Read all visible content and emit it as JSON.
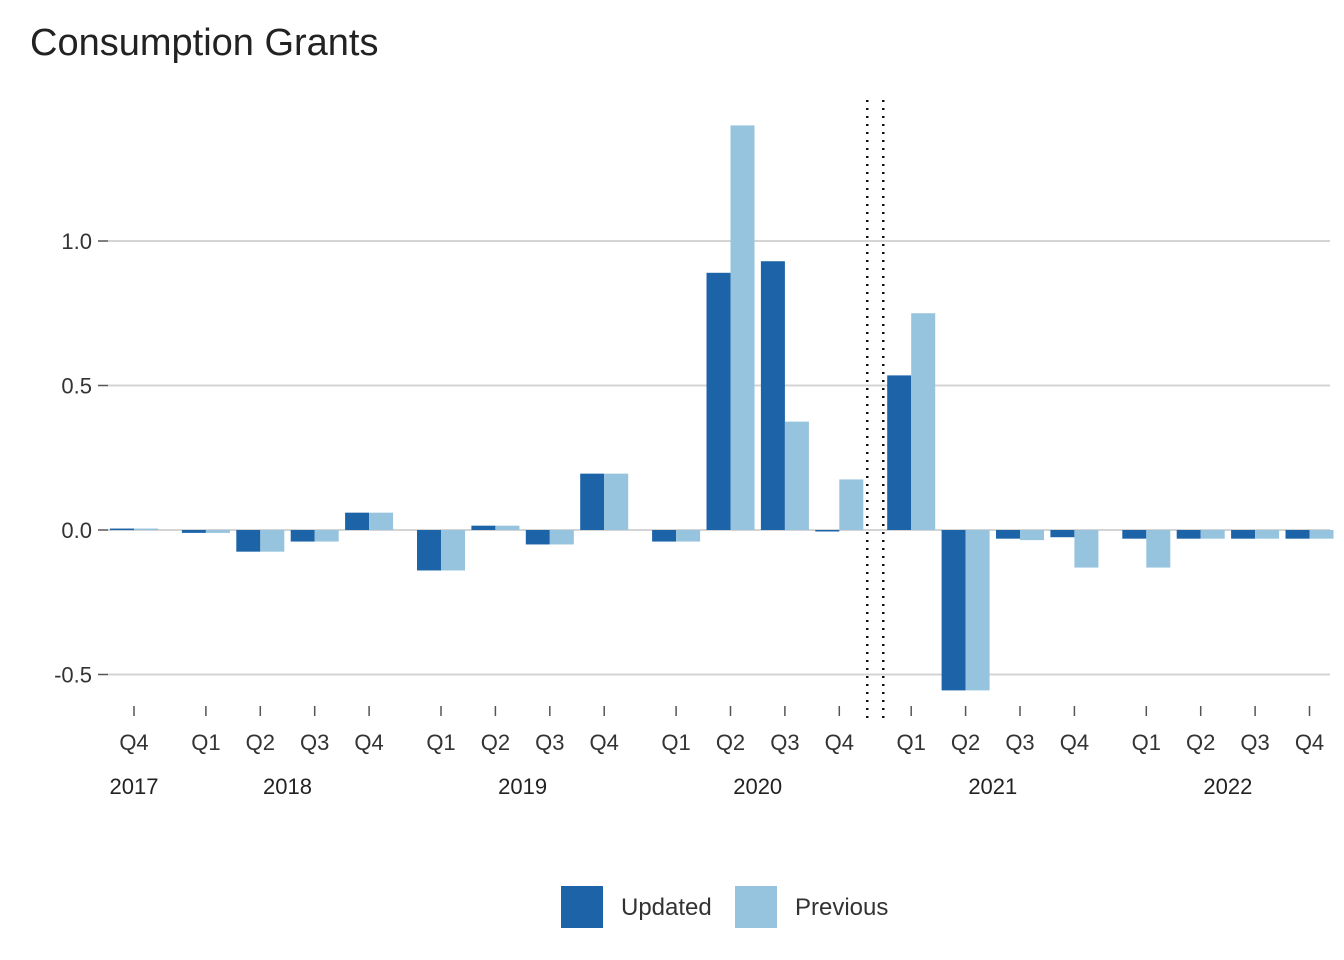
{
  "chart_data": {
    "type": "bar",
    "title": "Consumption Grants",
    "xlabel": "",
    "ylabel": "",
    "ylim": [
      -0.58,
      1.5
    ],
    "yticks": [
      -0.5,
      0.0,
      0.5,
      1.0
    ],
    "ytick_labels": [
      "-0.5",
      "0.0",
      "0.5",
      "1.0"
    ],
    "grid": true,
    "legend_position": "bottom",
    "forecast_divider_after": "2020 Q4",
    "years": [
      {
        "label": "2017",
        "quarters": [
          "Q4"
        ]
      },
      {
        "label": "2018",
        "quarters": [
          "Q1",
          "Q2",
          "Q3",
          "Q4"
        ]
      },
      {
        "label": "2019",
        "quarters": [
          "Q1",
          "Q2",
          "Q3",
          "Q4"
        ]
      },
      {
        "label": "2020",
        "quarters": [
          "Q1",
          "Q2",
          "Q3",
          "Q4"
        ]
      },
      {
        "label": "2021",
        "quarters": [
          "Q1",
          "Q2",
          "Q3",
          "Q4"
        ]
      },
      {
        "label": "2022",
        "quarters": [
          "Q1",
          "Q2",
          "Q3",
          "Q4"
        ]
      }
    ],
    "series": [
      {
        "name": "Updated",
        "color": "#1c63a8",
        "values": [
          0.005,
          -0.01,
          -0.075,
          -0.04,
          0.06,
          -0.14,
          0.015,
          -0.05,
          0.195,
          -0.04,
          0.89,
          0.93,
          -0.005,
          0.535,
          -0.555,
          -0.03,
          -0.025,
          -0.03,
          -0.03,
          -0.03,
          -0.03
        ]
      },
      {
        "name": "Previous",
        "color": "#96c3dd",
        "values": [
          0.005,
          -0.01,
          -0.075,
          -0.04,
          0.06,
          -0.14,
          0.015,
          -0.05,
          0.195,
          -0.04,
          1.4,
          0.375,
          0.175,
          0.75,
          -0.555,
          -0.035,
          -0.13,
          -0.13,
          -0.03,
          -0.03,
          -0.03
        ]
      }
    ]
  }
}
